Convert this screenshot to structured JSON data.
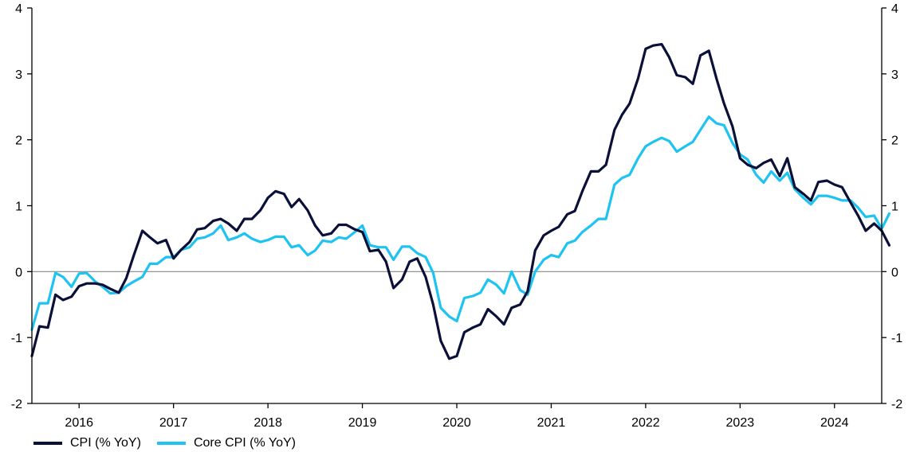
{
  "colors": {
    "cpi": "#0b1038",
    "core": "#1ec3f2",
    "axis": "#000000",
    "zero": "#888888"
  },
  "legend": {
    "cpi_label": "CPI (% YoY)",
    "core_label": "Core CPI (% YoY)"
  },
  "chart_data": {
    "type": "line",
    "title": "",
    "xlabel": "",
    "ylabel": "",
    "ylim": [
      -2,
      4
    ],
    "y_ticks": [
      -2,
      -1,
      0,
      1,
      2,
      3,
      4
    ],
    "x_range": [
      2015.5,
      2024.5
    ],
    "x_ticks": [
      "2016",
      "2017",
      "2018",
      "2019",
      "2020",
      "2021",
      "2022",
      "2023",
      "2024"
    ],
    "axes": "dual-identical",
    "grid": false,
    "legend_position": "bottom-left",
    "series": [
      {
        "name": "CPI (% YoY)",
        "color": "#0b1038",
        "points": [
          [
            2015.5,
            -1.28
          ],
          [
            2015.58,
            -0.83
          ],
          [
            2015.67,
            -0.85
          ],
          [
            2015.75,
            -0.35
          ],
          [
            2015.83,
            -0.43
          ],
          [
            2015.92,
            -0.38
          ],
          [
            2016.0,
            -0.22
          ],
          [
            2016.08,
            -0.18
          ],
          [
            2016.17,
            -0.18
          ],
          [
            2016.25,
            -0.2
          ],
          [
            2016.33,
            -0.26
          ],
          [
            2016.42,
            -0.32
          ],
          [
            2016.5,
            -0.1
          ],
          [
            2016.58,
            0.25
          ],
          [
            2016.67,
            0.62
          ],
          [
            2016.75,
            0.52
          ],
          [
            2016.83,
            0.43
          ],
          [
            2016.92,
            0.48
          ],
          [
            2017.0,
            0.2
          ],
          [
            2017.08,
            0.33
          ],
          [
            2017.17,
            0.45
          ],
          [
            2017.25,
            0.64
          ],
          [
            2017.33,
            0.66
          ],
          [
            2017.42,
            0.77
          ],
          [
            2017.5,
            0.8
          ],
          [
            2017.58,
            0.73
          ],
          [
            2017.67,
            0.62
          ],
          [
            2017.75,
            0.8
          ],
          [
            2017.83,
            0.8
          ],
          [
            2017.92,
            0.93
          ],
          [
            2018.0,
            1.12
          ],
          [
            2018.08,
            1.22
          ],
          [
            2018.17,
            1.18
          ],
          [
            2018.25,
            0.98
          ],
          [
            2018.33,
            1.1
          ],
          [
            2018.42,
            0.93
          ],
          [
            2018.5,
            0.7
          ],
          [
            2018.58,
            0.55
          ],
          [
            2018.67,
            0.58
          ],
          [
            2018.75,
            0.71
          ],
          [
            2018.83,
            0.71
          ],
          [
            2018.92,
            0.64
          ],
          [
            2019.0,
            0.6
          ],
          [
            2019.08,
            0.31
          ],
          [
            2019.17,
            0.33
          ],
          [
            2019.25,
            0.15
          ],
          [
            2019.33,
            -0.25
          ],
          [
            2019.42,
            -0.12
          ],
          [
            2019.5,
            0.15
          ],
          [
            2019.58,
            0.2
          ],
          [
            2019.67,
            -0.08
          ],
          [
            2019.75,
            -0.5
          ],
          [
            2019.83,
            -1.05
          ],
          [
            2019.92,
            -1.32
          ],
          [
            2020.0,
            -1.28
          ],
          [
            2020.08,
            -0.92
          ],
          [
            2020.17,
            -0.85
          ],
          [
            2020.25,
            -0.8
          ],
          [
            2020.33,
            -0.57
          ],
          [
            2020.42,
            -0.68
          ],
          [
            2020.5,
            -0.8
          ],
          [
            2020.58,
            -0.55
          ],
          [
            2020.67,
            -0.5
          ],
          [
            2020.75,
            -0.3
          ],
          [
            2020.83,
            0.32
          ],
          [
            2020.92,
            0.55
          ],
          [
            2021.0,
            0.62
          ],
          [
            2021.08,
            0.68
          ],
          [
            2021.17,
            0.87
          ],
          [
            2021.25,
            0.92
          ],
          [
            2021.33,
            1.22
          ],
          [
            2021.42,
            1.52
          ],
          [
            2021.5,
            1.52
          ],
          [
            2021.58,
            1.62
          ],
          [
            2021.67,
            2.15
          ],
          [
            2021.75,
            2.38
          ],
          [
            2021.83,
            2.55
          ],
          [
            2021.92,
            2.93
          ],
          [
            2022.0,
            3.38
          ],
          [
            2022.08,
            3.43
          ],
          [
            2022.17,
            3.45
          ],
          [
            2022.25,
            3.25
          ],
          [
            2022.33,
            2.98
          ],
          [
            2022.42,
            2.95
          ],
          [
            2022.5,
            2.85
          ],
          [
            2022.58,
            3.28
          ],
          [
            2022.67,
            3.35
          ],
          [
            2022.75,
            2.93
          ],
          [
            2022.83,
            2.55
          ],
          [
            2022.92,
            2.2
          ],
          [
            2023.0,
            1.72
          ],
          [
            2023.08,
            1.62
          ],
          [
            2023.17,
            1.57
          ],
          [
            2023.25,
            1.65
          ],
          [
            2023.33,
            1.7
          ],
          [
            2023.42,
            1.45
          ],
          [
            2023.5,
            1.72
          ],
          [
            2023.58,
            1.28
          ],
          [
            2023.67,
            1.18
          ],
          [
            2023.75,
            1.08
          ],
          [
            2023.83,
            1.36
          ],
          [
            2023.92,
            1.38
          ],
          [
            2024.0,
            1.32
          ],
          [
            2024.08,
            1.28
          ],
          [
            2024.17,
            1.05
          ],
          [
            2024.25,
            0.85
          ],
          [
            2024.33,
            0.62
          ],
          [
            2024.42,
            0.73
          ],
          [
            2024.5,
            0.62
          ],
          [
            2024.58,
            0.4
          ]
        ]
      },
      {
        "name": "Core CPI (% YoY)",
        "color": "#1ec3f2",
        "points": [
          [
            2015.5,
            -0.88
          ],
          [
            2015.58,
            -0.48
          ],
          [
            2015.67,
            -0.48
          ],
          [
            2015.75,
            -0.02
          ],
          [
            2015.83,
            -0.08
          ],
          [
            2015.92,
            -0.23
          ],
          [
            2016.0,
            -0.03
          ],
          [
            2016.08,
            -0.02
          ],
          [
            2016.17,
            -0.15
          ],
          [
            2016.25,
            -0.23
          ],
          [
            2016.33,
            -0.33
          ],
          [
            2016.42,
            -0.32
          ],
          [
            2016.5,
            -0.22
          ],
          [
            2016.58,
            -0.15
          ],
          [
            2016.67,
            -0.08
          ],
          [
            2016.75,
            0.12
          ],
          [
            2016.83,
            0.12
          ],
          [
            2016.92,
            0.22
          ],
          [
            2017.0,
            0.22
          ],
          [
            2017.08,
            0.33
          ],
          [
            2017.17,
            0.37
          ],
          [
            2017.25,
            0.5
          ],
          [
            2017.33,
            0.52
          ],
          [
            2017.42,
            0.58
          ],
          [
            2017.5,
            0.7
          ],
          [
            2017.58,
            0.48
          ],
          [
            2017.67,
            0.52
          ],
          [
            2017.75,
            0.58
          ],
          [
            2017.83,
            0.5
          ],
          [
            2017.92,
            0.45
          ],
          [
            2018.0,
            0.48
          ],
          [
            2018.08,
            0.53
          ],
          [
            2018.17,
            0.53
          ],
          [
            2018.25,
            0.37
          ],
          [
            2018.33,
            0.4
          ],
          [
            2018.42,
            0.25
          ],
          [
            2018.5,
            0.32
          ],
          [
            2018.58,
            0.47
          ],
          [
            2018.67,
            0.45
          ],
          [
            2018.75,
            0.52
          ],
          [
            2018.83,
            0.5
          ],
          [
            2018.92,
            0.6
          ],
          [
            2019.0,
            0.7
          ],
          [
            2019.08,
            0.4
          ],
          [
            2019.17,
            0.37
          ],
          [
            2019.25,
            0.37
          ],
          [
            2019.33,
            0.18
          ],
          [
            2019.42,
            0.38
          ],
          [
            2019.5,
            0.38
          ],
          [
            2019.58,
            0.28
          ],
          [
            2019.67,
            0.22
          ],
          [
            2019.75,
            -0.02
          ],
          [
            2019.83,
            -0.55
          ],
          [
            2019.92,
            -0.68
          ],
          [
            2020.0,
            -0.75
          ],
          [
            2020.08,
            -0.4
          ],
          [
            2020.17,
            -0.37
          ],
          [
            2020.25,
            -0.32
          ],
          [
            2020.33,
            -0.12
          ],
          [
            2020.42,
            -0.2
          ],
          [
            2020.5,
            -0.33
          ],
          [
            2020.58,
            0.0
          ],
          [
            2020.67,
            -0.28
          ],
          [
            2020.75,
            -0.35
          ],
          [
            2020.83,
            0.0
          ],
          [
            2020.92,
            0.18
          ],
          [
            2021.0,
            0.25
          ],
          [
            2021.08,
            0.22
          ],
          [
            2021.17,
            0.43
          ],
          [
            2021.25,
            0.47
          ],
          [
            2021.33,
            0.6
          ],
          [
            2021.42,
            0.7
          ],
          [
            2021.5,
            0.8
          ],
          [
            2021.58,
            0.8
          ],
          [
            2021.67,
            1.32
          ],
          [
            2021.75,
            1.42
          ],
          [
            2021.83,
            1.47
          ],
          [
            2021.92,
            1.72
          ],
          [
            2022.0,
            1.9
          ],
          [
            2022.08,
            1.97
          ],
          [
            2022.17,
            2.03
          ],
          [
            2022.25,
            1.98
          ],
          [
            2022.33,
            1.82
          ],
          [
            2022.42,
            1.9
          ],
          [
            2022.5,
            1.97
          ],
          [
            2022.58,
            2.15
          ],
          [
            2022.67,
            2.35
          ],
          [
            2022.75,
            2.25
          ],
          [
            2022.83,
            2.22
          ],
          [
            2022.92,
            1.95
          ],
          [
            2023.0,
            1.78
          ],
          [
            2023.08,
            1.7
          ],
          [
            2023.17,
            1.47
          ],
          [
            2023.25,
            1.35
          ],
          [
            2023.33,
            1.52
          ],
          [
            2023.42,
            1.38
          ],
          [
            2023.5,
            1.5
          ],
          [
            2023.58,
            1.25
          ],
          [
            2023.67,
            1.12
          ],
          [
            2023.75,
            1.02
          ],
          [
            2023.83,
            1.15
          ],
          [
            2023.92,
            1.15
          ],
          [
            2024.0,
            1.12
          ],
          [
            2024.08,
            1.08
          ],
          [
            2024.17,
            1.08
          ],
          [
            2024.25,
            0.97
          ],
          [
            2024.33,
            0.83
          ],
          [
            2024.42,
            0.85
          ],
          [
            2024.5,
            0.65
          ],
          [
            2024.58,
            0.88
          ]
        ]
      }
    ]
  }
}
